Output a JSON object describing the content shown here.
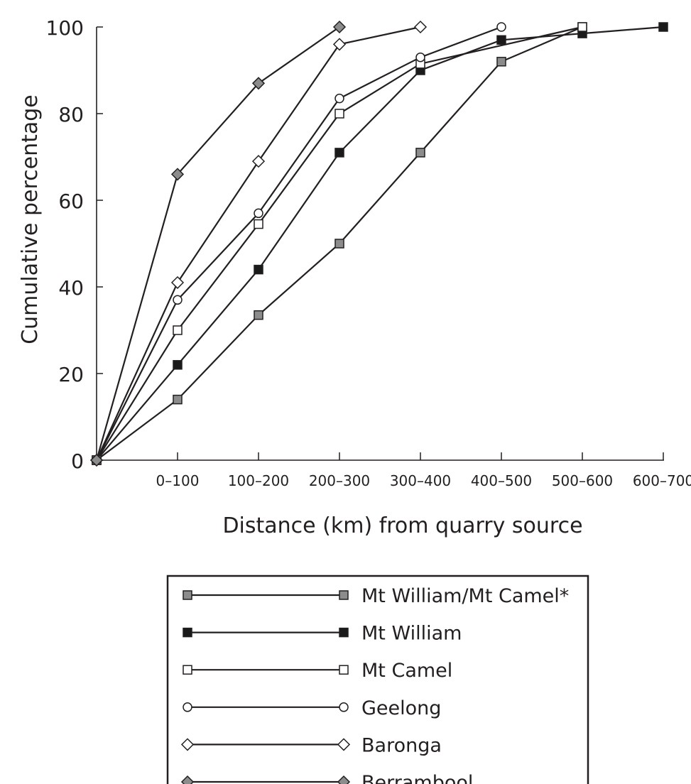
{
  "chart_data": {
    "type": "line",
    "title": "",
    "xlabel": "Distance (km) from quarry source",
    "ylabel": "Cumulative percentage",
    "categories": [
      "",
      "0–100",
      "100–200",
      "200–300",
      "300–400",
      "400–500",
      "500–600",
      "600–700"
    ],
    "ylim": [
      0,
      100
    ],
    "yticks": [
      0,
      20,
      40,
      60,
      80,
      100
    ],
    "grid": false,
    "legend_position": "bottom",
    "series": [
      {
        "name": "Mt William/Mt Camel*",
        "marker": "square",
        "fill": "#8c8c8c",
        "values": [
          0,
          14,
          33.5,
          50,
          71,
          92,
          100,
          null
        ]
      },
      {
        "name": "Mt William",
        "marker": "square",
        "fill": "#1a1a1a",
        "values": [
          0,
          22,
          44,
          71,
          90,
          97,
          98.5,
          100
        ]
      },
      {
        "name": "Mt Camel",
        "marker": "square",
        "fill": "#ffffff",
        "values": [
          0,
          30,
          54.5,
          80,
          91.5,
          null,
          100,
          null
        ]
      },
      {
        "name": "Geelong",
        "marker": "circle",
        "fill": "#ffffff",
        "values": [
          0,
          37,
          57,
          83.5,
          93,
          100,
          null,
          null
        ]
      },
      {
        "name": "Baronga",
        "marker": "diamond",
        "fill": "#ffffff",
        "values": [
          0,
          41,
          69,
          96,
          100,
          null,
          null,
          null
        ]
      },
      {
        "name": "Berrambool",
        "marker": "diamond",
        "fill": "#8c8c8c",
        "values": [
          0,
          66,
          87,
          100,
          null,
          null,
          null,
          null
        ]
      }
    ]
  }
}
